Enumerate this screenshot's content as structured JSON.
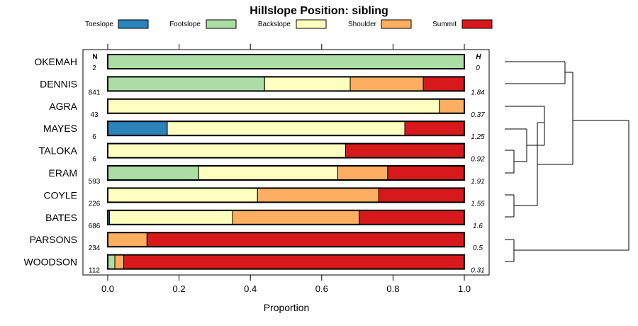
{
  "chart_data": {
    "type": "bar",
    "orientation": "horizontal",
    "stacked": true,
    "title": "Hillslope Position: sibling",
    "xlabel": "Proportion",
    "xlim": [
      0,
      1
    ],
    "xticks": [
      "0.0",
      "0.2",
      "0.4",
      "0.6",
      "0.8",
      "1.0"
    ],
    "n_header": "N",
    "h_header": "H",
    "legend": [
      {
        "name": "Toeslope",
        "color": "#2b83ba"
      },
      {
        "name": "Footslope",
        "color": "#abdda4"
      },
      {
        "name": "Backslope",
        "color": "#ffffbf"
      },
      {
        "name": "Shoulder",
        "color": "#fdae61"
      },
      {
        "name": "Summit",
        "color": "#d7191c"
      }
    ],
    "categories": [
      {
        "name": "OKEMAH",
        "n": "2",
        "h": "0",
        "values": [
          0,
          1,
          0,
          0,
          0
        ]
      },
      {
        "name": "DENNIS",
        "n": "841",
        "h": "1.84",
        "values": [
          0,
          0.44,
          0.24,
          0.205,
          0.115
        ]
      },
      {
        "name": "AGRA",
        "n": "43",
        "h": "0.37",
        "values": [
          0,
          0,
          0.93,
          0.07,
          0
        ]
      },
      {
        "name": "MAYES",
        "n": "6",
        "h": "1.25",
        "values": [
          0.167,
          0,
          0.666,
          0,
          0.167
        ]
      },
      {
        "name": "TALOKA",
        "n": "6",
        "h": "0.92",
        "values": [
          0,
          0,
          0.667,
          0,
          0.333
        ]
      },
      {
        "name": "ERAM",
        "n": "593",
        "h": "1.91",
        "values": [
          0,
          0.255,
          0.39,
          0.14,
          0.215
        ]
      },
      {
        "name": "COYLE",
        "n": "226",
        "h": "1.55",
        "values": [
          0,
          0,
          0.42,
          0.34,
          0.24
        ]
      },
      {
        "name": "BATES",
        "n": "686",
        "h": "1.6",
        "values": [
          0.005,
          0,
          0.345,
          0.355,
          0.295
        ]
      },
      {
        "name": "PARSONS",
        "n": "234",
        "h": "0.5",
        "values": [
          0,
          0,
          0,
          0.11,
          0.89
        ]
      },
      {
        "name": "WOODSON",
        "n": "112",
        "h": "0.31",
        "values": [
          0,
          0.02,
          0,
          0.025,
          0.955
        ]
      }
    ]
  }
}
